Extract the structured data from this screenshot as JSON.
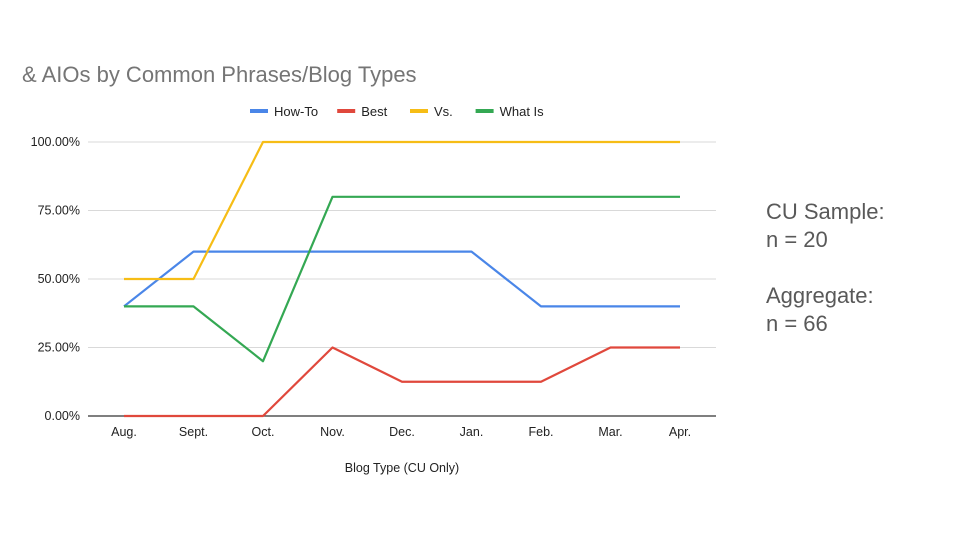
{
  "chart_data": {
    "type": "line",
    "title": "& AIOs by Common Phrases/Blog Types",
    "xlabel": "Blog Type (CU Only)",
    "ylabel": "",
    "categories": [
      "Aug.",
      "Sept.",
      "Oct.",
      "Nov.",
      "Dec.",
      "Jan.",
      "Feb.",
      "Mar.",
      "Apr."
    ],
    "ylim": [
      0,
      100
    ],
    "yticks": [
      "0.00%",
      "25.00%",
      "50.00%",
      "75.00%",
      "100.00%"
    ],
    "grid": true,
    "legend": "top",
    "series": [
      {
        "name": "How-To",
        "color": "#4a86e8",
        "values": [
          40,
          60,
          60,
          60,
          60,
          60,
          40,
          40,
          40
        ]
      },
      {
        "name": "Best",
        "color": "#e0483c",
        "values": [
          0,
          0,
          0,
          25,
          12.5,
          12.5,
          12.5,
          25,
          25
        ]
      },
      {
        "name": "Vs.",
        "color": "#f6bd16",
        "values": [
          50,
          50,
          100,
          100,
          100,
          100,
          100,
          100,
          100
        ]
      },
      {
        "name": "What Is",
        "color": "#34a853",
        "values": [
          40,
          40,
          20,
          80,
          80,
          80,
          80,
          80,
          80
        ]
      }
    ]
  },
  "notes": {
    "sample_label": "CU Sample:",
    "sample_n": "n = 20",
    "aggregate_label": "Aggregate:",
    "aggregate_n": "n = 66"
  }
}
